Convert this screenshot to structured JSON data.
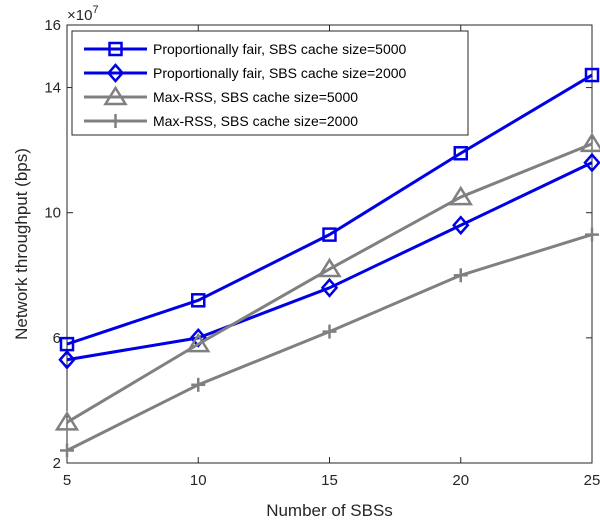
{
  "chart_data": {
    "type": "line",
    "title": "",
    "xlabel": "Number of SBSs",
    "ylabel": "Network throughput (bps)",
    "y_multiplier": "×10",
    "y_multiplier_exponent": "7",
    "x": [
      5,
      10,
      15,
      20,
      25
    ],
    "xlim": [
      5,
      25
    ],
    "ylim": [
      2,
      16
    ],
    "x_ticks": [
      "5",
      "10",
      "15",
      "20",
      "25"
    ],
    "y_ticks": [
      "2",
      "6",
      "10",
      "14",
      "16"
    ],
    "y_tick_values": [
      2,
      6,
      10,
      14,
      16
    ],
    "grid": false,
    "legend_position": "top-left",
    "series": [
      {
        "name": "Proportionally fair, SBS cache size=5000",
        "values": [
          5.8,
          7.2,
          9.3,
          11.9,
          14.4
        ],
        "color": "#0000e6",
        "marker": "square"
      },
      {
        "name": "Proportionally fair, SBS cache size=2000",
        "values": [
          5.3,
          6.0,
          7.6,
          9.6,
          11.6
        ],
        "color": "#0000e6",
        "marker": "diamond"
      },
      {
        "name": "Max-RSS, SBS cache size=5000",
        "values": [
          3.3,
          5.8,
          8.2,
          10.5,
          12.2
        ],
        "color": "#808080",
        "marker": "triangle"
      },
      {
        "name": "Max-RSS, SBS cache size=2000",
        "values": [
          2.4,
          4.5,
          6.2,
          8.0,
          9.3
        ],
        "color": "#808080",
        "marker": "plus"
      }
    ]
  }
}
